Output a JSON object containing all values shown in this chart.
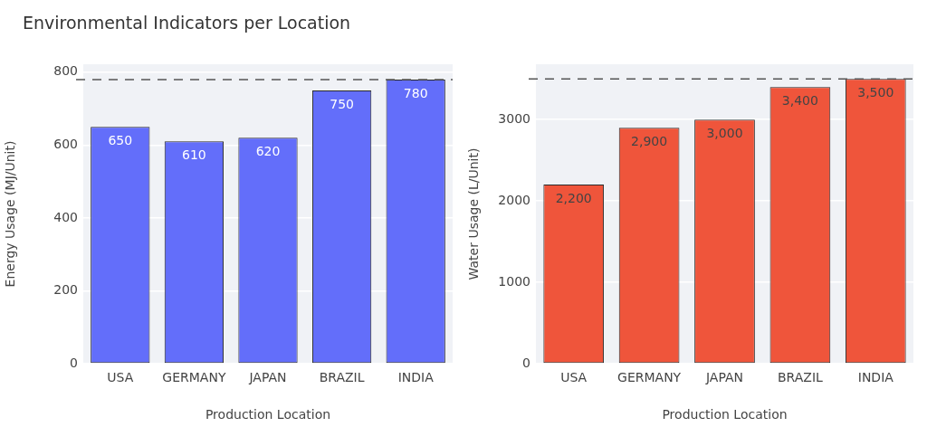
{
  "chart_data": [
    {
      "type": "bar",
      "title": "Environmental Indicators per Location",
      "xlabel": "Production Location",
      "ylabel": "Energy Usage (MJ/Unit)",
      "categories": [
        "USA",
        "GERMANY",
        "JAPAN",
        "BRAZIL",
        "INDIA"
      ],
      "values": [
        650,
        610,
        620,
        750,
        780
      ],
      "color": "#636efa",
      "ylim": [
        0,
        822
      ],
      "yticks": [
        0,
        200,
        400,
        600,
        800
      ],
      "grid": "y",
      "data_labels": true,
      "ref_lines": [
        {
          "axis": "y",
          "value": 780,
          "line_style": "dashed",
          "color": "#555555"
        }
      ]
    },
    {
      "type": "bar",
      "xlabel": "Production Location",
      "ylabel": "Water Usage (L/Unit)",
      "categories": [
        "USA",
        "GERMANY",
        "JAPAN",
        "BRAZIL",
        "INDIA"
      ],
      "values": [
        2200,
        2900,
        3000,
        3400,
        3500
      ],
      "color": "#ef553b",
      "ylim": [
        0,
        3680
      ],
      "yticks": [
        0,
        1000,
        2000,
        3000
      ],
      "grid": "y",
      "value_labels": [
        "2,200",
        "2,900",
        "3,000",
        "3,400",
        "3,500"
      ],
      "ref_lines": [
        {
          "axis": "y",
          "value": 3500,
          "line_style": "dashed",
          "color": "#555555"
        }
      ]
    }
  ]
}
